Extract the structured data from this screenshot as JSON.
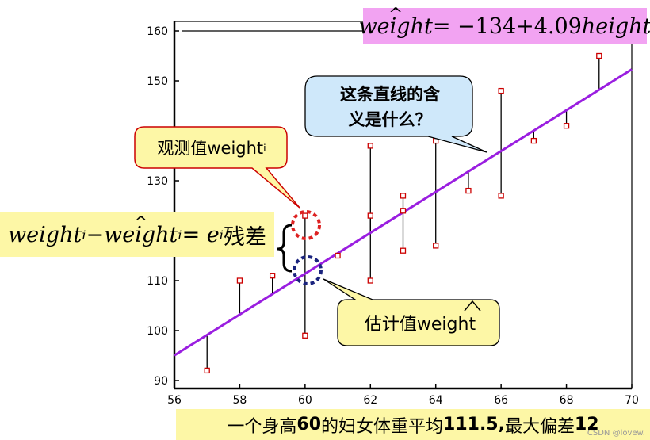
{
  "chart_data": {
    "type": "scatter",
    "x_ticks": [
      56,
      58,
      60,
      62,
      64,
      66,
      68,
      70
    ],
    "y_ticks": [
      90,
      100,
      110,
      130,
      150,
      160
    ],
    "xlim": [
      56,
      70
    ],
    "ylim": [
      89,
      161
    ],
    "points": [
      {
        "x": 57,
        "y": 92
      },
      {
        "x": 58,
        "y": 110
      },
      {
        "x": 59,
        "y": 111
      },
      {
        "x": 60,
        "y": 99
      },
      {
        "x": 60,
        "y": 123
      },
      {
        "x": 61,
        "y": 115
      },
      {
        "x": 62,
        "y": 110
      },
      {
        "x": 62,
        "y": 123
      },
      {
        "x": 62,
        "y": 137
      },
      {
        "x": 63,
        "y": 116
      },
      {
        "x": 63,
        "y": 124
      },
      {
        "x": 63,
        "y": 127
      },
      {
        "x": 64,
        "y": 117
      },
      {
        "x": 64,
        "y": 138
      },
      {
        "x": 65,
        "y": 128
      },
      {
        "x": 66,
        "y": 127
      },
      {
        "x": 66,
        "y": 148
      },
      {
        "x": 67,
        "y": 138
      },
      {
        "x": 68,
        "y": 141
      },
      {
        "x": 69,
        "y": 155
      }
    ],
    "regression_line": {
      "intercept": -134,
      "slope": 4.09,
      "color": "#9a1ee0"
    },
    "marker_color": "#cc0000",
    "grid": false
  },
  "equation": {
    "lhs": "weight",
    "rhs": "= −134+4.09",
    "var": "height"
  },
  "residual": {
    "term1": "weight",
    "sub1": "i",
    "minus": " − ",
    "term2": "weight",
    "sub2": "i",
    "equals": " = e",
    "sub3": "i",
    "label": "残差"
  },
  "bubbles": {
    "question_line1": "这条直线的含",
    "question_line2": "义是什么？",
    "observed": "观测值weight",
    "observed_sub": "i",
    "estimated": "估计值weight"
  },
  "bottom_text": {
    "part1": "一个身高",
    "num1": "60",
    "part2": "的妇女体重平均",
    "num2": "111.5,",
    "part3": "最大偏差",
    "num3": "12"
  },
  "watermark": "CSDN @lovew."
}
